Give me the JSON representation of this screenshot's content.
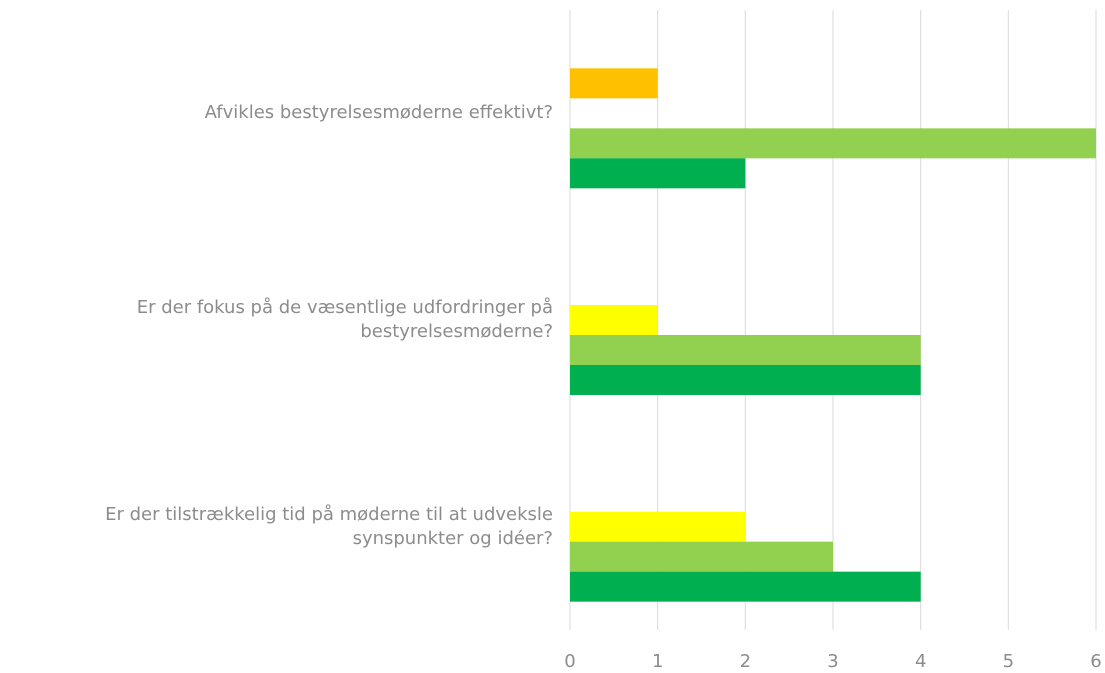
{
  "chart_data": {
    "type": "bar",
    "orientation": "horizontal",
    "categories": [
      "Afvikles bestyrelsesmøderne effektivt?",
      "Er der fokus på de væsentlige udfordringer på bestyrelsesmøderne?",
      "Er der tilstrækkelig tid på møderne til at udveksle synspunkter og idéer?"
    ],
    "series": [
      {
        "color": "#ff0000",
        "values": [
          0,
          0,
          0
        ]
      },
      {
        "color": "#ffc000",
        "values": [
          1,
          0,
          0
        ]
      },
      {
        "color": "#ffff00",
        "values": [
          0,
          1,
          2
        ]
      },
      {
        "color": "#92d050",
        "values": [
          6,
          4,
          3
        ]
      },
      {
        "color": "#00b050",
        "values": [
          2,
          4,
          4
        ]
      }
    ],
    "xlim": [
      0,
      6
    ],
    "xticks": [
      0,
      1,
      2,
      3,
      4,
      5,
      6
    ],
    "grid": true
  }
}
